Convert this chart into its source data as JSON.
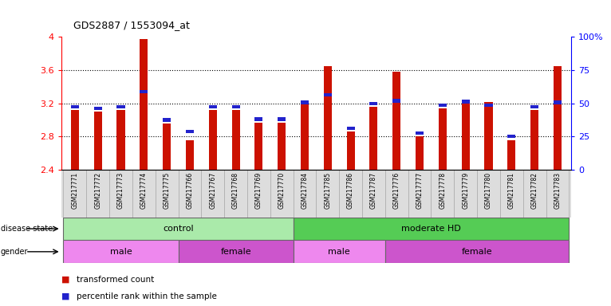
{
  "title": "GDS2887 / 1553094_at",
  "samples": [
    "GSM217771",
    "GSM217772",
    "GSM217773",
    "GSM217774",
    "GSM217775",
    "GSM217766",
    "GSM217767",
    "GSM217768",
    "GSM217769",
    "GSM217770",
    "GSM217784",
    "GSM217785",
    "GSM217786",
    "GSM217787",
    "GSM217776",
    "GSM217777",
    "GSM217778",
    "GSM217779",
    "GSM217780",
    "GSM217781",
    "GSM217782",
    "GSM217783"
  ],
  "red_values": [
    3.12,
    3.1,
    3.12,
    3.97,
    2.96,
    2.76,
    3.12,
    3.12,
    2.97,
    2.97,
    3.22,
    3.65,
    2.86,
    3.16,
    3.58,
    2.8,
    3.14,
    3.2,
    3.22,
    2.76,
    3.12,
    3.65
  ],
  "blue_values": [
    3.14,
    3.12,
    3.14,
    3.32,
    2.98,
    2.84,
    3.14,
    3.14,
    2.99,
    2.99,
    3.19,
    3.28,
    2.88,
    3.18,
    3.21,
    2.82,
    3.16,
    3.2,
    3.16,
    2.78,
    3.14,
    3.19
  ],
  "ymin": 2.4,
  "ymax": 4.0,
  "yticks": [
    2.4,
    2.8,
    3.2,
    3.6,
    4.0
  ],
  "ytick_labels": [
    "2.4",
    "2.8",
    "3.2",
    "3.6",
    "4"
  ],
  "right_yticks": [
    0,
    25,
    50,
    75,
    100
  ],
  "right_ytick_labels": [
    "0",
    "25",
    "50",
    "75",
    "100%"
  ],
  "disease_state_groups": [
    {
      "label": "control",
      "start": 0,
      "end": 10,
      "color": "#AAEAAA"
    },
    {
      "label": "moderate HD",
      "start": 10,
      "end": 22,
      "color": "#55CC55"
    }
  ],
  "gender_groups": [
    {
      "label": "male",
      "start": 0,
      "end": 5,
      "color": "#EE88EE"
    },
    {
      "label": "female",
      "start": 5,
      "end": 10,
      "color": "#CC55CC"
    },
    {
      "label": "male",
      "start": 10,
      "end": 14,
      "color": "#EE88EE"
    },
    {
      "label": "female",
      "start": 14,
      "end": 22,
      "color": "#CC55CC"
    }
  ],
  "bar_color": "#CC1100",
  "blue_color": "#2222CC",
  "bar_width": 0.35,
  "plot_bg": "#FFFFFF",
  "label_bg": "#DDDDDD",
  "legend_items": [
    {
      "color": "#CC1100",
      "label": "transformed count"
    },
    {
      "color": "#2222CC",
      "label": "percentile rank within the sample"
    }
  ]
}
